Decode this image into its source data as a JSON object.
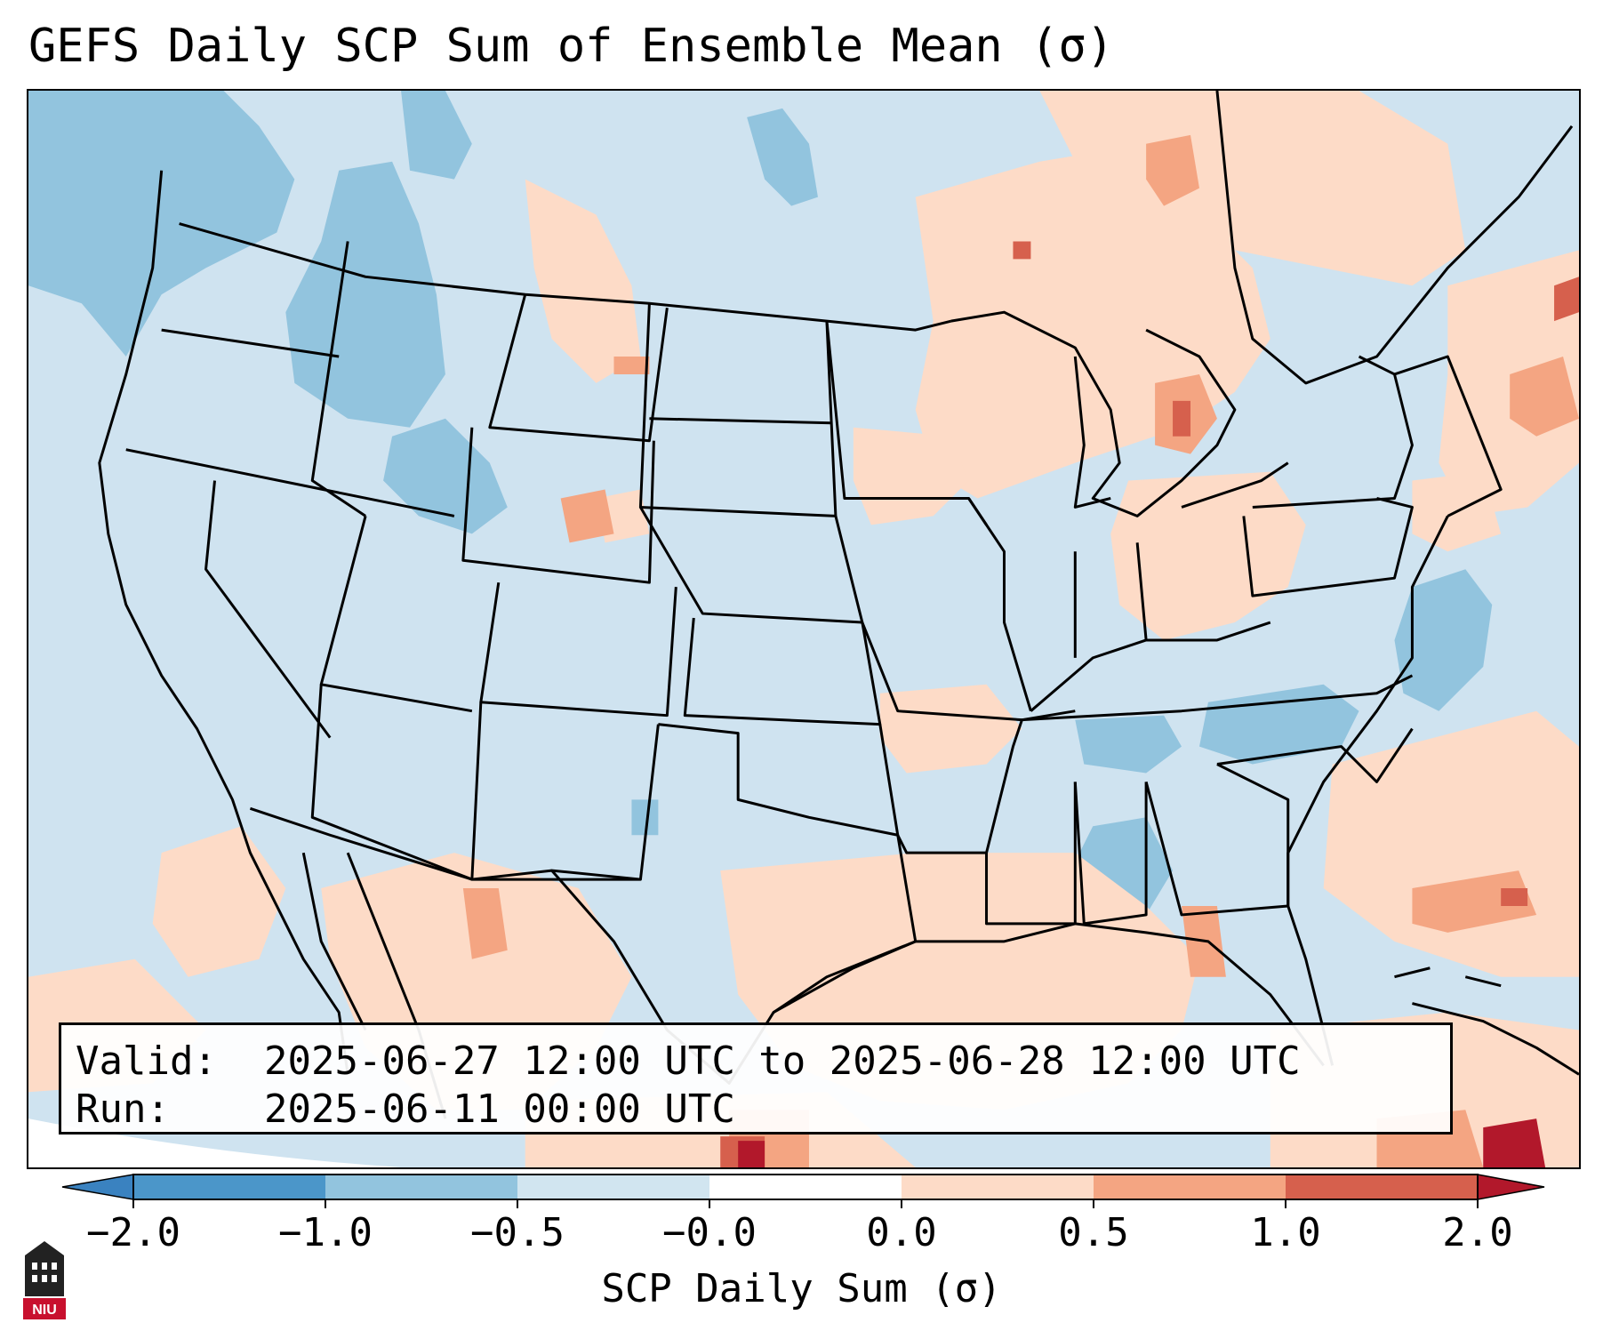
{
  "title": "GEFS Daily SCP Sum of Ensemble Mean (σ)",
  "info": {
    "valid_label": "Valid:",
    "valid_value": "2025-06-27 12:00 UTC to 2025-06-28 12:00 UTC",
    "run_label": "Run:",
    "run_value": "2025-06-11 00:00 UTC"
  },
  "colorbar": {
    "label": "SCP Daily Sum (σ)",
    "ticks": [
      "−2.0",
      "−1.0",
      "−0.5",
      "−0.0",
      "0.0",
      "0.5",
      "1.0",
      "2.0"
    ],
    "colors": {
      "below_min": "#3a82c0",
      "neg_2_to_neg_1": "#4b96c9",
      "neg_1_to_neg_05": "#92c4de",
      "neg_05_to_0": "#d1e5f0",
      "zero_to_zero": "#ffffff",
      "zero_to_05": "#fddbc7",
      "pos_05_to_1": "#f4a582",
      "pos_1_to_2": "#d6604d",
      "above_max": "#b2182b"
    }
  },
  "logo": {
    "text": "NIU",
    "icon": "niu-logo-icon"
  }
}
